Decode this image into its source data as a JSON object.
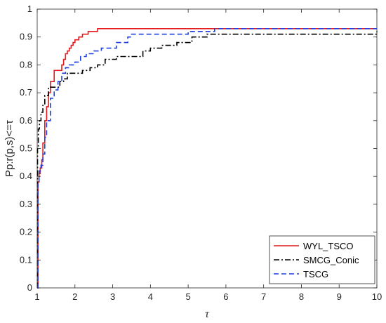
{
  "chart_data": {
    "type": "line",
    "xlabel": "τ",
    "ylabel": "Pp:r(p,s)<=τ",
    "xlim": [
      1,
      10
    ],
    "ylim": [
      0,
      1
    ],
    "xticks": [
      "1",
      "2",
      "3",
      "4",
      "5",
      "6",
      "7",
      "8",
      "9",
      "10"
    ],
    "yticks": [
      "0",
      "0.1",
      "0.2",
      "0.3",
      "0.4",
      "0.5",
      "0.6",
      "0.7",
      "0.8",
      "0.9",
      "1"
    ],
    "grid": false,
    "legend_position": "bottom-right",
    "series": [
      {
        "name": "WYL_TSCO",
        "color": "#e41a1c",
        "dash": "solid",
        "x": [
          1.0,
          1.02,
          1.05,
          1.08,
          1.12,
          1.15,
          1.2,
          1.25,
          1.3,
          1.35,
          1.45,
          1.5,
          1.65,
          1.7,
          1.75,
          1.8,
          1.85,
          1.9,
          1.95,
          2.0,
          2.1,
          2.2,
          2.35,
          2.6,
          10.0
        ],
        "y": [
          0.0,
          0.38,
          0.41,
          0.43,
          0.46,
          0.52,
          0.6,
          0.65,
          0.7,
          0.74,
          0.78,
          0.78,
          0.8,
          0.82,
          0.84,
          0.85,
          0.86,
          0.87,
          0.88,
          0.89,
          0.9,
          0.91,
          0.92,
          0.93,
          0.93
        ]
      },
      {
        "name": "SMCG_Conic",
        "color": "#000000",
        "dash": "dashdot",
        "x": [
          1.0,
          1.01,
          1.03,
          1.06,
          1.1,
          1.15,
          1.2,
          1.3,
          1.5,
          1.6,
          1.7,
          1.8,
          2.2,
          2.4,
          2.6,
          2.8,
          3.1,
          3.6,
          3.8,
          4.0,
          4.3,
          4.7,
          5.1,
          5.5,
          10.0
        ],
        "y": [
          0.0,
          0.5,
          0.57,
          0.6,
          0.63,
          0.66,
          0.69,
          0.72,
          0.72,
          0.74,
          0.75,
          0.77,
          0.78,
          0.79,
          0.8,
          0.82,
          0.83,
          0.83,
          0.85,
          0.86,
          0.87,
          0.88,
          0.9,
          0.91,
          0.92
        ]
      },
      {
        "name": "TSCG",
        "color": "#1f3fe0",
        "dash": "dashed",
        "x": [
          1.0,
          1.02,
          1.05,
          1.1,
          1.15,
          1.2,
          1.25,
          1.35,
          1.45,
          1.55,
          1.65,
          1.75,
          1.85,
          2.0,
          2.15,
          2.3,
          2.5,
          2.7,
          3.1,
          3.4,
          3.5,
          5.0,
          5.7,
          10.0
        ],
        "y": [
          0.0,
          0.38,
          0.42,
          0.44,
          0.48,
          0.54,
          0.6,
          0.68,
          0.71,
          0.74,
          0.77,
          0.79,
          0.8,
          0.81,
          0.83,
          0.84,
          0.85,
          0.86,
          0.88,
          0.9,
          0.91,
          0.92,
          0.93,
          0.93
        ]
      }
    ]
  }
}
